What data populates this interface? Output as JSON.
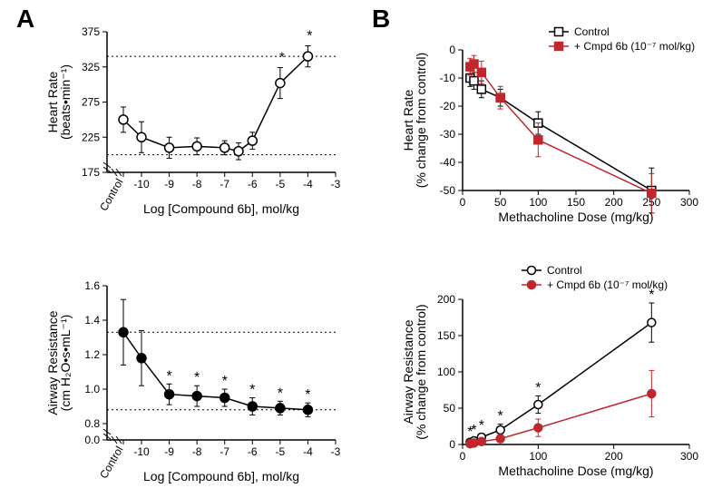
{
  "colors": {
    "black": "#000000",
    "red": "#c0272d",
    "grid": "#000000",
    "bg": "#ffffff"
  },
  "panelA": {
    "label": "A",
    "top": {
      "type": "line",
      "x_label": "Log [Compound 6b], mol/kg",
      "y_label": "Heart Rate\n(beats•min⁻¹)",
      "y_ticks": [
        175,
        225,
        275,
        325,
        375
      ],
      "x_ticks": [
        -10,
        -9,
        -8,
        -7,
        -6,
        -5,
        -4,
        -3
      ],
      "x_control_label": "Control",
      "ref_lines": [
        200,
        340
      ],
      "marker": {
        "shape": "circle",
        "fill": "#ffffff",
        "stroke": "#000000",
        "size": 5
      },
      "line_color": "#000000",
      "points": [
        {
          "x": "Control",
          "y": 250,
          "err": 18
        },
        {
          "x": -10,
          "y": 225,
          "err": 22
        },
        {
          "x": -9,
          "y": 210,
          "err": 15
        },
        {
          "x": -8,
          "y": 212,
          "err": 12
        },
        {
          "x": -7,
          "y": 210,
          "err": 10
        },
        {
          "x": -6.5,
          "y": 205,
          "err": 12
        },
        {
          "x": -6,
          "y": 220,
          "err": 12
        },
        {
          "x": -5,
          "y": 302,
          "err": 22,
          "sig": true
        },
        {
          "x": -4,
          "y": 340,
          "err": 15,
          "sig": true
        }
      ]
    },
    "bottom": {
      "type": "line",
      "x_label": "Log [Compound 6b], mol/kg",
      "y_label": "Airway Resistance\n(cm H₂O•s•mL⁻¹)",
      "y_ticks": [
        0,
        0.8,
        1.0,
        1.2,
        1.4,
        1.6
      ],
      "y_break": true,
      "x_ticks": [
        -10,
        -9,
        -8,
        -7,
        -6,
        -5,
        -4,
        -3
      ],
      "x_control_label": "Control",
      "ref_lines": [
        0.88,
        1.33
      ],
      "marker": {
        "shape": "circle",
        "fill": "#000000",
        "stroke": "#000000",
        "size": 5
      },
      "line_color": "#000000",
      "points": [
        {
          "x": "Control",
          "y": 1.33,
          "err": 0.19
        },
        {
          "x": -10,
          "y": 1.18,
          "err": 0.16
        },
        {
          "x": -9,
          "y": 0.97,
          "err": 0.06,
          "sig": true
        },
        {
          "x": -8,
          "y": 0.96,
          "err": 0.06,
          "sig": true
        },
        {
          "x": -7,
          "y": 0.95,
          "err": 0.05,
          "sig": true
        },
        {
          "x": -6,
          "y": 0.9,
          "err": 0.05,
          "sig": true
        },
        {
          "x": -5,
          "y": 0.89,
          "err": 0.04,
          "sig": true
        },
        {
          "x": -4,
          "y": 0.88,
          "err": 0.04,
          "sig": true
        }
      ]
    }
  },
  "panelB": {
    "label": "B",
    "top": {
      "type": "line",
      "x_label": "Methacholine Dose (mg/kg)",
      "y_label": "Heart Rate\n(% change from control)",
      "y_ticks": [
        -50,
        -40,
        -30,
        -20,
        -10,
        0
      ],
      "x_ticks": [
        0,
        50,
        100,
        150,
        200,
        250,
        300
      ],
      "legend": [
        {
          "label": "Control",
          "marker": {
            "shape": "square",
            "fill": "#ffffff",
            "stroke": "#000000"
          },
          "line": "#000000"
        },
        {
          "label": "+ Cmpd 6b (10⁻⁷ mol/kg)",
          "marker": {
            "shape": "square",
            "fill": "#c0272d",
            "stroke": "#c0272d"
          },
          "line": "#c0272d"
        }
      ],
      "series": [
        {
          "name": "control",
          "color": "#000000",
          "fill": "#ffffff",
          "shape": "square",
          "points": [
            {
              "x": 10,
              "y": -10,
              "err": 3
            },
            {
              "x": 15,
              "y": -11,
              "err": 3
            },
            {
              "x": 25,
              "y": -14,
              "err": 3
            },
            {
              "x": 50,
              "y": -17,
              "err": 3
            },
            {
              "x": 100,
              "y": -26,
              "err": 4
            },
            {
              "x": 250,
              "y": -50,
              "err": 8
            }
          ]
        },
        {
          "name": "cmpd6b",
          "color": "#c0272d",
          "fill": "#c0272d",
          "shape": "square",
          "points": [
            {
              "x": 10,
              "y": -6,
              "err": 3
            },
            {
              "x": 15,
              "y": -5,
              "err": 3
            },
            {
              "x": 25,
              "y": -8,
              "err": 4
            },
            {
              "x": 50,
              "y": -17,
              "err": 4
            },
            {
              "x": 100,
              "y": -32,
              "err": 6
            },
            {
              "x": 250,
              "y": -51,
              "err": 7
            }
          ]
        }
      ]
    },
    "bottom": {
      "type": "line",
      "x_label": "Methacholine Dose (mg/kg)",
      "y_label": "Airway Resistance\n(% change from control)",
      "y_ticks": [
        0,
        50,
        100,
        150,
        200
      ],
      "x_ticks": [
        0,
        100,
        200,
        300
      ],
      "legend": [
        {
          "label": "Control",
          "marker": {
            "shape": "circle",
            "fill": "#ffffff",
            "stroke": "#000000"
          },
          "line": "#000000"
        },
        {
          "label": "+ Cmpd 6b (10⁻⁷ mol/kg)",
          "marker": {
            "shape": "circle",
            "fill": "#c0272d",
            "stroke": "#c0272d"
          },
          "line": "#c0272d"
        }
      ],
      "series": [
        {
          "name": "control",
          "color": "#000000",
          "fill": "#ffffff",
          "shape": "circle",
          "points": [
            {
              "x": 10,
              "y": 3,
              "err": 3,
              "sig": true
            },
            {
              "x": 15,
              "y": 5,
              "err": 4,
              "sig": true
            },
            {
              "x": 25,
              "y": 10,
              "err": 5,
              "sig": true
            },
            {
              "x": 50,
              "y": 20,
              "err": 8,
              "sig": true
            },
            {
              "x": 100,
              "y": 55,
              "err": 12,
              "sig": true
            },
            {
              "x": 250,
              "y": 168,
              "err": 27,
              "sig": true
            }
          ]
        },
        {
          "name": "cmpd6b",
          "color": "#c0272d",
          "fill": "#c0272d",
          "shape": "circle",
          "points": [
            {
              "x": 10,
              "y": 1,
              "err": 2
            },
            {
              "x": 15,
              "y": 2,
              "err": 3
            },
            {
              "x": 25,
              "y": 4,
              "err": 4
            },
            {
              "x": 50,
              "y": 8,
              "err": 5
            },
            {
              "x": 100,
              "y": 23,
              "err": 12
            },
            {
              "x": 250,
              "y": 70,
              "err": 32
            }
          ]
        }
      ]
    }
  }
}
